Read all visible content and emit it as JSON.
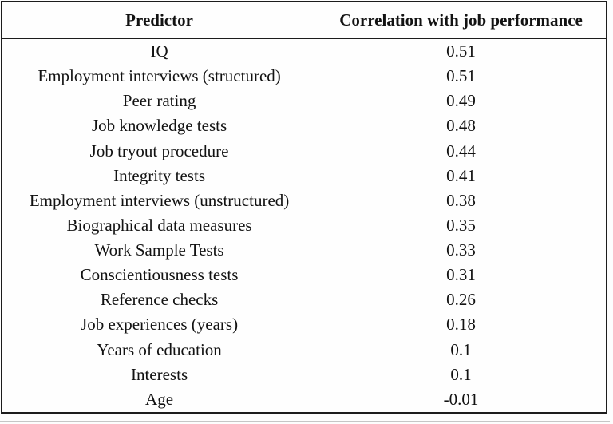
{
  "table": {
    "columns": [
      "Predictor",
      "Correlation with job performance"
    ],
    "rows": [
      {
        "predictor": "IQ",
        "correlation": "0.51"
      },
      {
        "predictor": "Employment interviews (structured)",
        "correlation": "0.51"
      },
      {
        "predictor": "Peer rating",
        "correlation": "0.49"
      },
      {
        "predictor": "Job knowledge tests",
        "correlation": "0.48"
      },
      {
        "predictor": "Job tryout procedure",
        "correlation": "0.44"
      },
      {
        "predictor": "Integrity tests",
        "correlation": "0.41"
      },
      {
        "predictor": "Employment interviews (unstructured)",
        "correlation": "0.38"
      },
      {
        "predictor": "Biographical data measures",
        "correlation": "0.35"
      },
      {
        "predictor": "Work Sample Tests",
        "correlation": "0.33"
      },
      {
        "predictor": "Conscientiousness tests",
        "correlation": "0.31"
      },
      {
        "predictor": "Reference checks",
        "correlation": "0.26"
      },
      {
        "predictor": "Job experiences (years)",
        "correlation": "0.18"
      },
      {
        "predictor": "Years of education",
        "correlation": "0.1"
      },
      {
        "predictor": "Interests",
        "correlation": "0.1"
      },
      {
        "predictor": "Age",
        "correlation": "-0.01"
      }
    ]
  },
  "colors": {
    "border": "#1c1c1c",
    "text": "#121212",
    "background": "#fdfdfd",
    "bottom_shadow": "#c6c6c6"
  }
}
